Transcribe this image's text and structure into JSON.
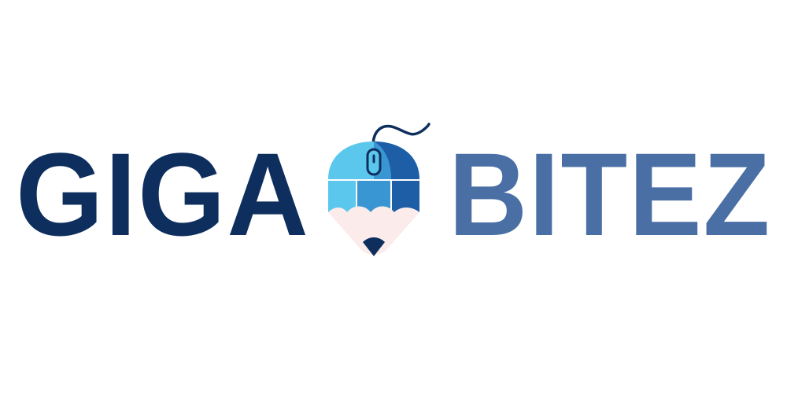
{
  "logo": {
    "word_left": "GIGA",
    "word_right": "BITEZ",
    "icon": "mouse-pencil-icon",
    "colors": {
      "word_left": "#0e2f5e",
      "word_right": "#4a6fa5",
      "mouse_light": "#5bc7ec",
      "mouse_mid": "#3a95d3",
      "mouse_dark": "#1e5ea6",
      "pencil_wood": "#fbeceb",
      "pencil_tip": "#0e2f5e"
    }
  }
}
